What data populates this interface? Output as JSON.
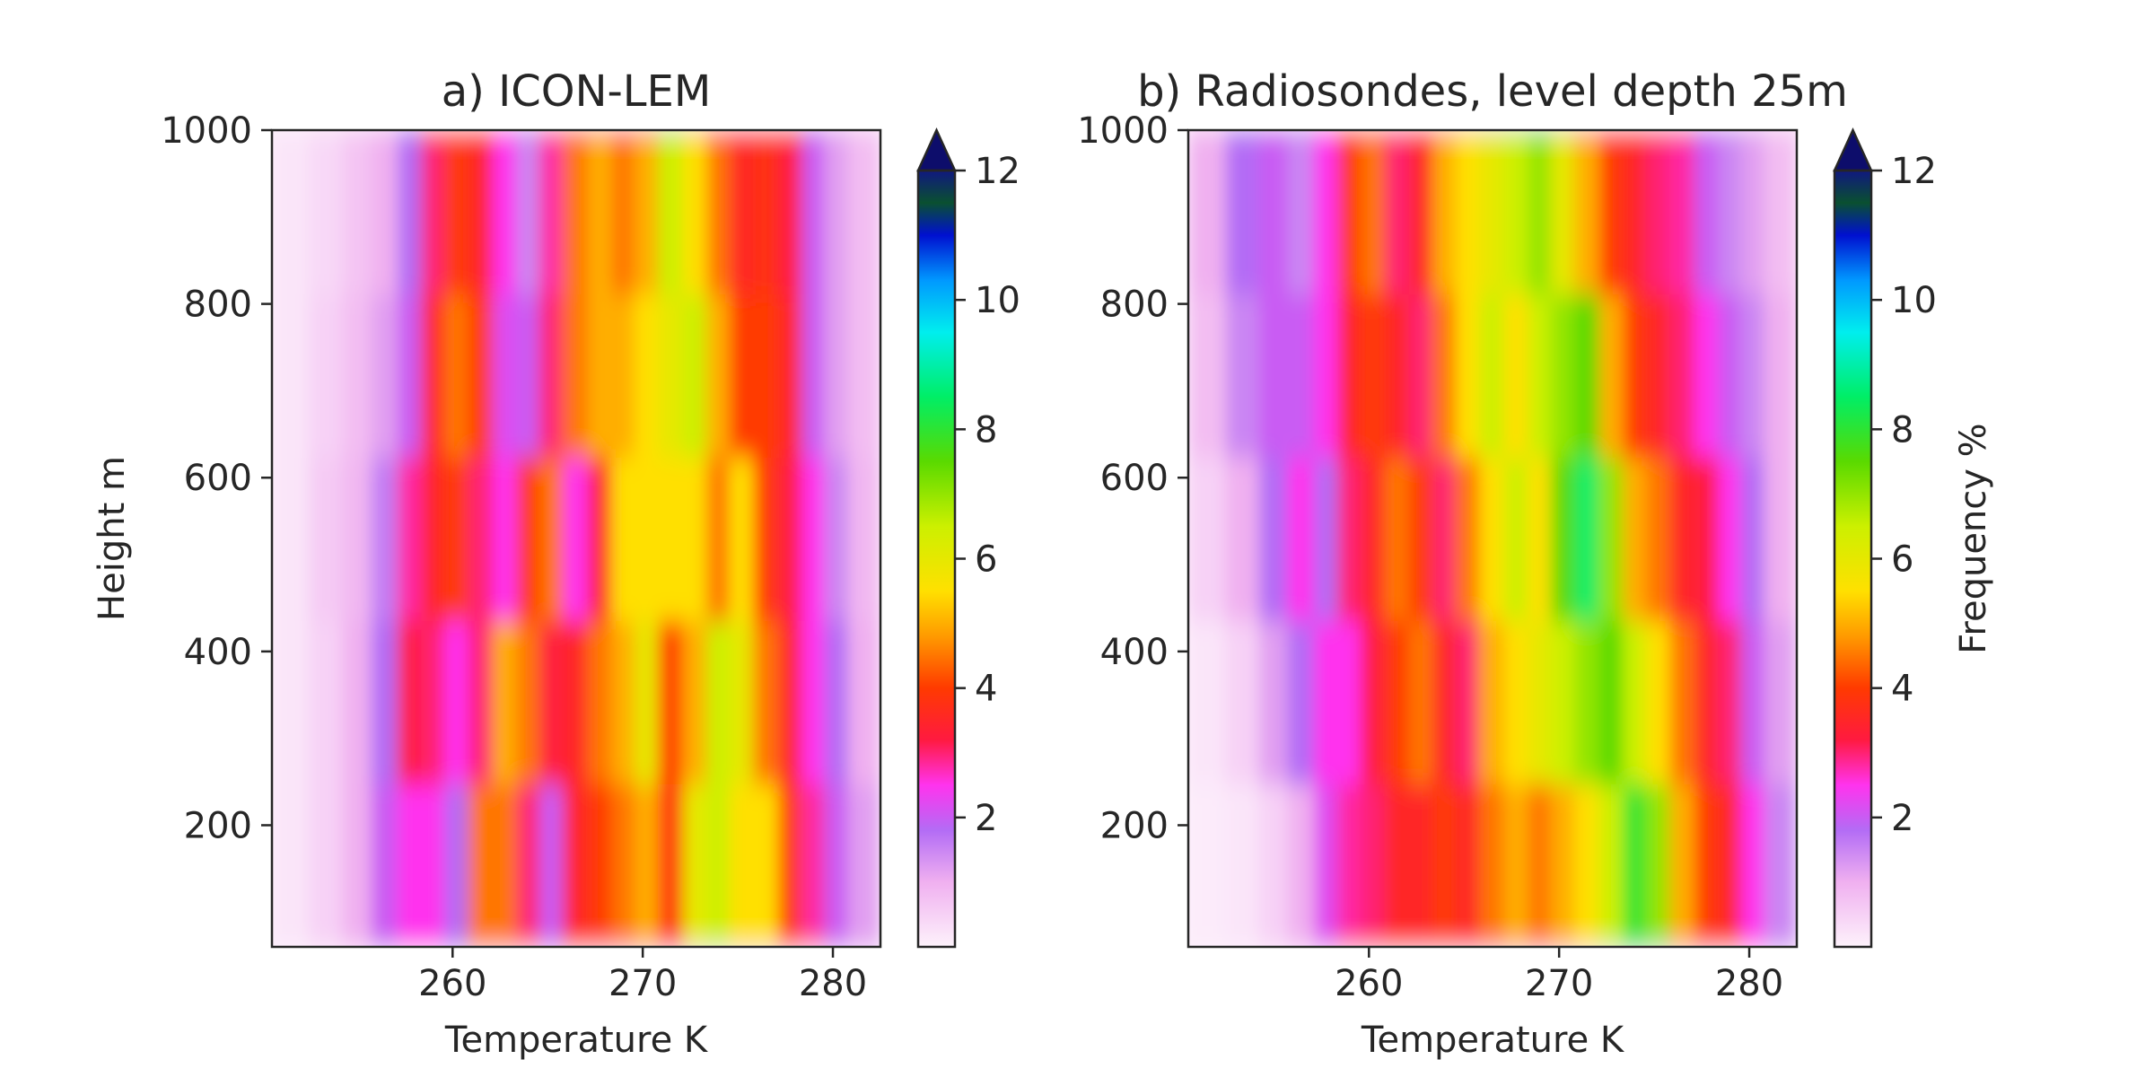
{
  "chart_data": [
    {
      "type": "heatmap",
      "panel": "a",
      "title": "a) ICON-LEM",
      "xlabel": "Temperature K",
      "ylabel": "Height m",
      "xlim": [
        250.5,
        282.5
      ],
      "ylim": [
        60,
        1000
      ],
      "xticks": [
        260,
        270,
        280
      ],
      "yticks": [
        200,
        400,
        600,
        800,
        1000
      ],
      "value_label": "Frequency %",
      "value_range": [
        0,
        12
      ],
      "bands": [
        {
          "t": 251.5,
          "f": [
            0.2,
            0.2,
            0.2,
            0.2,
            0.2
          ]
        },
        {
          "t": 253.5,
          "f": [
            0.5,
            0.5,
            0.6,
            0.5,
            0.4
          ]
        },
        {
          "t": 255.0,
          "f": [
            1.0,
            1.0,
            0.9,
            0.8,
            0.7
          ]
        },
        {
          "t": 256.5,
          "f": [
            2.0,
            1.8,
            1.6,
            1.2,
            1.0
          ]
        },
        {
          "t": 257.8,
          "f": [
            2.5,
            3.2,
            2.8,
            2.0,
            1.8
          ]
        },
        {
          "t": 259.0,
          "f": [
            2.5,
            3.0,
            3.5,
            3.5,
            3.0
          ]
        },
        {
          "t": 260.2,
          "f": [
            1.8,
            2.5,
            4.0,
            4.5,
            4.0
          ]
        },
        {
          "t": 261.5,
          "f": [
            4.5,
            3.0,
            3.0,
            4.0,
            3.5
          ]
        },
        {
          "t": 262.8,
          "f": [
            4.5,
            5.0,
            2.5,
            2.2,
            2.5
          ]
        },
        {
          "t": 264.0,
          "f": [
            3.0,
            4.5,
            4.0,
            2.0,
            1.5
          ]
        },
        {
          "t": 265.2,
          "f": [
            2.0,
            3.2,
            4.5,
            3.0,
            2.8
          ]
        },
        {
          "t": 266.5,
          "f": [
            3.5,
            3.5,
            2.5,
            4.5,
            4.5
          ]
        },
        {
          "t": 267.8,
          "f": [
            4.0,
            4.5,
            3.5,
            5.0,
            5.0
          ]
        },
        {
          "t": 269.0,
          "f": [
            4.5,
            5.0,
            5.5,
            5.0,
            4.5
          ]
        },
        {
          "t": 270.2,
          "f": [
            5.0,
            6.0,
            5.5,
            5.5,
            5.0
          ]
        },
        {
          "t": 271.5,
          "f": [
            3.8,
            4.0,
            5.5,
            6.0,
            6.5
          ]
        },
        {
          "t": 272.8,
          "f": [
            6.0,
            5.0,
            5.5,
            6.5,
            5.5
          ]
        },
        {
          "t": 274.0,
          "f": [
            6.5,
            6.5,
            4.5,
            5.0,
            4.5
          ]
        },
        {
          "t": 275.2,
          "f": [
            5.5,
            6.0,
            5.5,
            4.0,
            3.5
          ]
        },
        {
          "t": 276.5,
          "f": [
            5.5,
            4.5,
            4.0,
            4.0,
            3.8
          ]
        },
        {
          "t": 277.8,
          "f": [
            4.0,
            3.5,
            3.2,
            3.5,
            3.2
          ]
        },
        {
          "t": 279.0,
          "f": [
            2.8,
            2.5,
            2.5,
            2.0,
            2.0
          ]
        },
        {
          "t": 280.2,
          "f": [
            2.0,
            1.8,
            1.5,
            1.2,
            1.2
          ]
        },
        {
          "t": 281.5,
          "f": [
            1.2,
            1.0,
            0.9,
            0.8,
            0.8
          ]
        }
      ]
    },
    {
      "type": "heatmap",
      "panel": "b",
      "title": "b) Radiosondes, level depth 25m",
      "xlabel": "Temperature K",
      "ylabel": "",
      "xlim": [
        250.5,
        282.5
      ],
      "ylim": [
        60,
        1000
      ],
      "xticks": [
        260,
        270,
        280
      ],
      "yticks": [
        200,
        400,
        600,
        800,
        1000
      ],
      "value_label": "Frequency %",
      "value_range": [
        0,
        12
      ],
      "bands": [
        {
          "t": 251.5,
          "f": [
            0.1,
            0.2,
            0.5,
            0.8,
            1.0
          ]
        },
        {
          "t": 253.5,
          "f": [
            0.2,
            0.5,
            1.0,
            1.5,
            1.8
          ]
        },
        {
          "t": 255.0,
          "f": [
            0.5,
            1.2,
            1.8,
            2.0,
            2.0
          ]
        },
        {
          "t": 256.5,
          "f": [
            1.0,
            1.8,
            2.5,
            2.0,
            1.5
          ]
        },
        {
          "t": 257.8,
          "f": [
            2.2,
            2.5,
            1.8,
            2.5,
            2.5
          ]
        },
        {
          "t": 259.0,
          "f": [
            2.8,
            2.5,
            3.0,
            3.5,
            4.0
          ]
        },
        {
          "t": 260.2,
          "f": [
            3.0,
            3.2,
            3.5,
            4.0,
            4.5
          ]
        },
        {
          "t": 261.5,
          "f": [
            3.5,
            4.0,
            4.5,
            3.5,
            3.0
          ]
        },
        {
          "t": 262.8,
          "f": [
            3.5,
            4.5,
            4.0,
            3.0,
            3.5
          ]
        },
        {
          "t": 264.0,
          "f": [
            4.0,
            3.5,
            3.0,
            4.5,
            5.0
          ]
        },
        {
          "t": 265.2,
          "f": [
            3.5,
            3.0,
            4.5,
            5.5,
            5.5
          ]
        },
        {
          "t": 266.5,
          "f": [
            4.5,
            5.0,
            5.5,
            6.5,
            6.0
          ]
        },
        {
          "t": 267.8,
          "f": [
            5.0,
            5.5,
            6.5,
            5.5,
            6.5
          ]
        },
        {
          "t": 269.0,
          "f": [
            4.5,
            6.0,
            5.5,
            6.5,
            7.0
          ]
        },
        {
          "t": 270.2,
          "f": [
            5.0,
            6.5,
            7.5,
            7.0,
            6.0
          ]
        },
        {
          "t": 271.5,
          "f": [
            5.5,
            7.0,
            8.5,
            7.5,
            5.0
          ]
        },
        {
          "t": 272.8,
          "f": [
            6.5,
            7.5,
            7.0,
            5.0,
            4.0
          ]
        },
        {
          "t": 274.0,
          "f": [
            8.0,
            6.5,
            5.0,
            4.0,
            3.5
          ]
        },
        {
          "t": 275.2,
          "f": [
            7.0,
            5.5,
            4.5,
            3.5,
            3.0
          ]
        },
        {
          "t": 276.5,
          "f": [
            5.0,
            4.5,
            3.5,
            3.0,
            2.8
          ]
        },
        {
          "t": 277.8,
          "f": [
            4.0,
            3.5,
            3.2,
            2.5,
            2.0
          ]
        },
        {
          "t": 279.0,
          "f": [
            3.5,
            3.0,
            2.5,
            2.0,
            1.5
          ]
        },
        {
          "t": 280.2,
          "f": [
            2.5,
            2.0,
            1.8,
            1.5,
            1.2
          ]
        },
        {
          "t": 281.5,
          "f": [
            1.5,
            1.2,
            1.0,
            1.0,
            0.8
          ]
        }
      ]
    }
  ],
  "colorbar": {
    "ticks": [
      2,
      4,
      6,
      8,
      10,
      12
    ],
    "range": [
      0,
      12
    ],
    "extend": "max",
    "label": "Frequency %",
    "colormap": [
      {
        "v": 0.0,
        "c": "#fdf2fb"
      },
      {
        "v": 1.0,
        "c": "#f0b0f0"
      },
      {
        "v": 1.8,
        "c": "#b36cf5"
      },
      {
        "v": 2.5,
        "c": "#ff33ee"
      },
      {
        "v": 3.2,
        "c": "#ff1a40"
      },
      {
        "v": 4.0,
        "c": "#ff3a00"
      },
      {
        "v": 4.8,
        "c": "#ff9a00"
      },
      {
        "v": 5.5,
        "c": "#ffe000"
      },
      {
        "v": 6.5,
        "c": "#ccf000"
      },
      {
        "v": 7.5,
        "c": "#5ada00"
      },
      {
        "v": 8.5,
        "c": "#00ee66"
      },
      {
        "v": 9.5,
        "c": "#00eeee"
      },
      {
        "v": 10.3,
        "c": "#0099ff"
      },
      {
        "v": 11.0,
        "c": "#0010d0"
      },
      {
        "v": 11.5,
        "c": "#0a5030"
      },
      {
        "v": 12.0,
        "c": "#101880"
      }
    ],
    "extend_color": "#0d0d6b"
  }
}
